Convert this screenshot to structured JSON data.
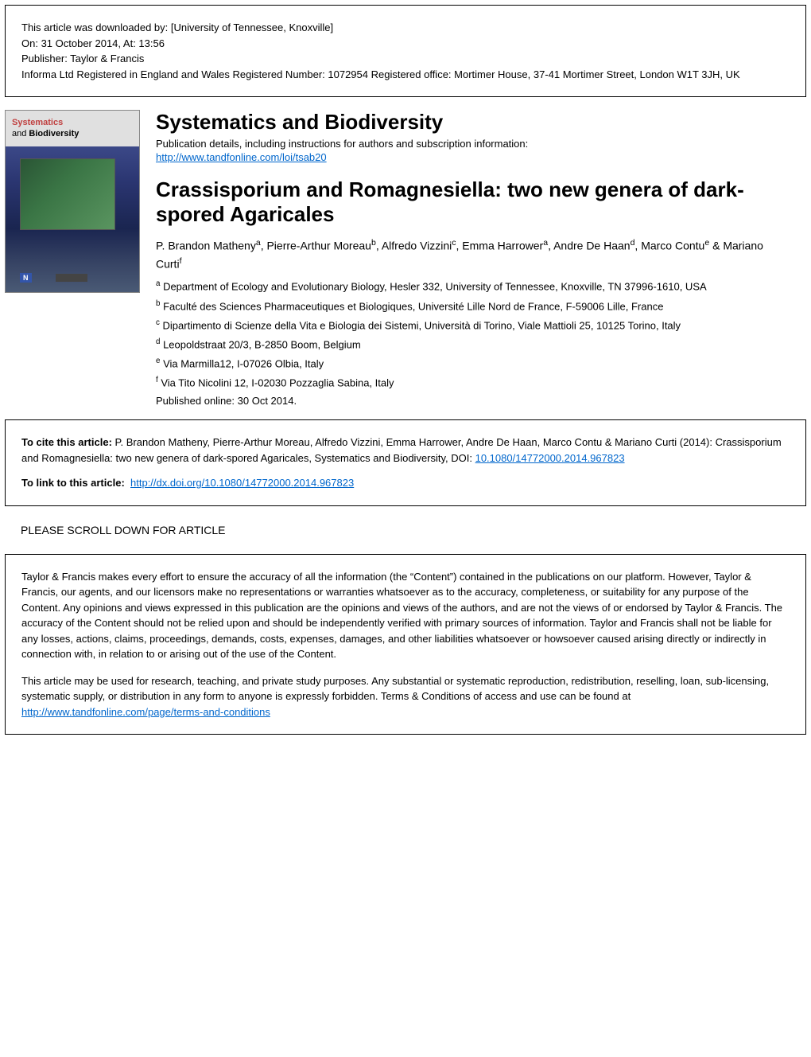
{
  "header": {
    "downloaded_by": "This article was downloaded by: [University of Tennessee, Knoxville]",
    "date": "On: 31 October 2014, At: 13:56",
    "publisher": "Publisher: Taylor & Francis",
    "registration": "Informa Ltd Registered in England and Wales Registered Number: 1072954 Registered office: Mortimer House, 37-41 Mortimer Street, London W1T 3JH, UK"
  },
  "cover": {
    "title_line1": "Systematics",
    "title_and": "and",
    "title_line2": "Biodiversity"
  },
  "journal": {
    "title": "Systematics and Biodiversity",
    "pub_details": "Publication details, including instructions for authors and subscription information:",
    "url": "http://www.tandfonline.com/loi/tsab20"
  },
  "article": {
    "title": "Crassisporium and Romagnesiella: two new genera of dark-spored Agaricales",
    "authors_html": "P. Brandon Matheny|a|, Pierre-Arthur Moreau|b|, Alfredo Vizzini|c|, Emma Harrower|a|, Andre De Haan|d|, Marco Contu|e| & Mariano Curti|f",
    "affiliations": {
      "a": "Department of Ecology and Evolutionary Biology, Hesler 332, University of Tennessee, Knoxville, TN 37996-1610, USA",
      "b": "Faculté des Sciences Pharmaceutiques et Biologiques, Université Lille Nord de France, F-59006 Lille, France",
      "c": "Dipartimento di Scienze della Vita e Biologia dei Sistemi, Università di Torino, Viale Mattioli 25, 10125 Torino, Italy",
      "d": "Leopoldstraat 20/3, B-2850 Boom, Belgium",
      "e": "Via Marmilla12, I-07026 Olbia, Italy",
      "f": "Via Tito Nicolini 12, I-02030 Pozzaglia Sabina, Italy"
    },
    "published": "Published online: 30 Oct 2014."
  },
  "citation": {
    "cite_label": "To cite this article:",
    "cite_text": " P. Brandon Matheny, Pierre-Arthur Moreau, Alfredo Vizzini, Emma Harrower, Andre De Haan, Marco Contu & Mariano Curti (2014): Crassisporium and Romagnesiella: two new genera of dark-spored Agaricales, Systematics and Biodiversity, DOI: ",
    "doi": "10.1080/14772000.2014.967823",
    "link_label": "To link to this article:",
    "link_url": "http://dx.doi.org/10.1080/14772000.2014.967823"
  },
  "scroll": {
    "heading": "PLEASE SCROLL DOWN FOR ARTICLE"
  },
  "terms": {
    "para1": "Taylor & Francis makes every effort to ensure the accuracy of all the information (the “Content”) contained in the publications on our platform. However, Taylor & Francis, our agents, and our licensors make no representations or warranties whatsoever as to the accuracy, completeness, or suitability for any purpose of the Content. Any opinions and views expressed in this publication are the opinions and views of the authors, and are not the views of or endorsed by Taylor & Francis. The accuracy of the Content should not be relied upon and should be independently verified with primary sources of information. Taylor and Francis shall not be liable for any losses, actions, claims, proceedings, demands, costs, expenses, damages, and other liabilities whatsoever or howsoever caused arising directly or indirectly in connection with, in relation to or arising out of the use of the Content.",
    "para2_pre": "This article may be used for research, teaching, and private study purposes. Any substantial or systematic reproduction, redistribution, reselling, loan, sub-licensing, systematic supply, or distribution in any form to anyone is expressly forbidden. Terms & Conditions of access and use can be found at ",
    "para2_link": "http://www.tandfonline.com/page/terms-and-conditions"
  },
  "colors": {
    "link": "#0066cc",
    "background": "#ffffff",
    "text": "#000000",
    "border": "#000000"
  }
}
